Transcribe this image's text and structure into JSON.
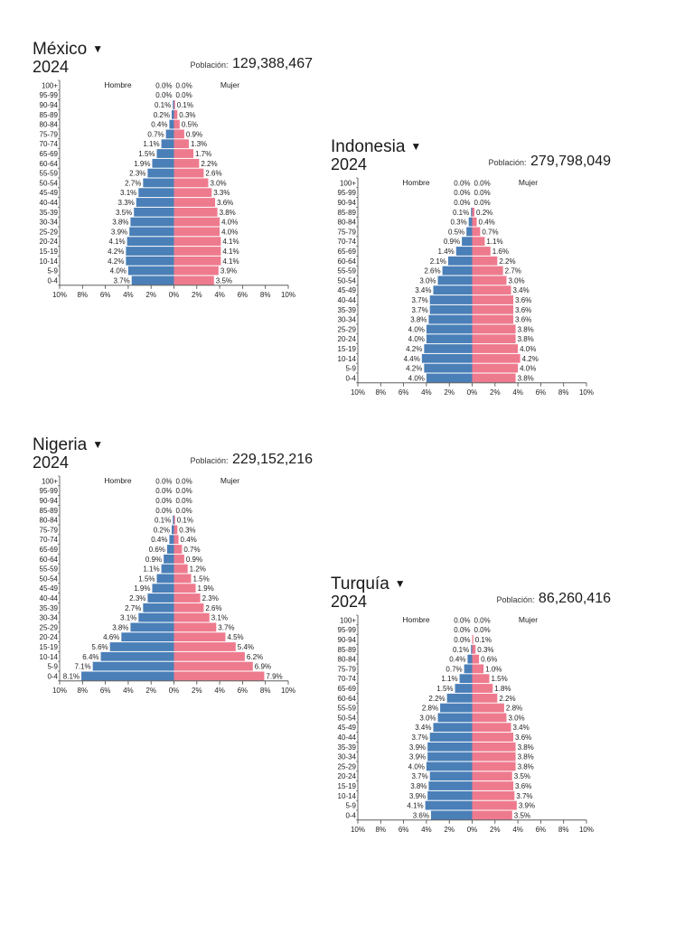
{
  "colors": {
    "male": "#4a7fb8",
    "female": "#ee7a8e",
    "axis": "#444444",
    "text": "#222222"
  },
  "age_groups": [
    "100+",
    "95-99",
    "90-94",
    "85-89",
    "80-84",
    "75-79",
    "70-74",
    "65-69",
    "60-64",
    "55-59",
    "50-54",
    "45-49",
    "40-44",
    "35-39",
    "30-34",
    "25-29",
    "20-24",
    "15-19",
    "10-14",
    "5-9",
    "0-4"
  ],
  "panels": [
    {
      "country": "México",
      "year": "2024",
      "population_label": "Población:",
      "population": "129,388,467",
      "male_label": "Hombre",
      "female_label": "Mujer",
      "chart_data": {
        "type": "bar",
        "orientation": "horizontal-population-pyramid",
        "categories": [
          "100+",
          "95-99",
          "90-94",
          "85-89",
          "80-84",
          "75-79",
          "70-74",
          "65-69",
          "60-64",
          "55-59",
          "50-54",
          "45-49",
          "40-44",
          "35-39",
          "30-34",
          "25-29",
          "20-24",
          "15-19",
          "10-14",
          "5-9",
          "0-4"
        ],
        "series": [
          {
            "name": "Hombre",
            "values": [
              0.0,
              0.0,
              0.1,
              0.2,
              0.4,
              0.7,
              1.1,
              1.5,
              1.9,
              2.3,
              2.7,
              3.1,
              3.3,
              3.5,
              3.8,
              3.9,
              4.1,
              4.2,
              4.2,
              4.0,
              3.7
            ]
          },
          {
            "name": "Mujer",
            "values": [
              0.0,
              0.0,
              0.1,
              0.3,
              0.5,
              0.9,
              1.3,
              1.7,
              2.2,
              2.6,
              3.0,
              3.3,
              3.6,
              3.8,
              4.0,
              4.0,
              4.1,
              4.1,
              4.1,
              3.9,
              3.5
            ]
          }
        ],
        "x_ticks": [
          "10%",
          "8%",
          "6%",
          "4%",
          "2%",
          "0%",
          "2%",
          "4%",
          "6%",
          "8%",
          "10%"
        ],
        "xlim": [
          -10,
          10
        ]
      }
    },
    {
      "country": "Indonesia",
      "year": "2024",
      "population_label": "Población:",
      "population": "279,798,049",
      "male_label": "Hombre",
      "female_label": "Mujer",
      "chart_data": {
        "type": "bar",
        "orientation": "horizontal-population-pyramid",
        "categories": [
          "100+",
          "95-99",
          "90-94",
          "85-89",
          "80-84",
          "75-79",
          "70-74",
          "65-69",
          "60-64",
          "55-59",
          "50-54",
          "45-49",
          "40-44",
          "35-39",
          "30-34",
          "25-29",
          "20-24",
          "15-19",
          "10-14",
          "5-9",
          "0-4"
        ],
        "series": [
          {
            "name": "Hombre",
            "values": [
              0.0,
              0.0,
              0.0,
              0.1,
              0.3,
              0.5,
              0.9,
              1.4,
              2.1,
              2.6,
              3.0,
              3.4,
              3.7,
              3.7,
              3.8,
              4.0,
              4.0,
              4.2,
              4.4,
              4.2,
              4.0
            ]
          },
          {
            "name": "Mujer",
            "values": [
              0.0,
              0.0,
              0.0,
              0.2,
              0.4,
              0.7,
              1.1,
              1.6,
              2.2,
              2.7,
              3.0,
              3.4,
              3.6,
              3.6,
              3.6,
              3.8,
              3.8,
              4.0,
              4.2,
              4.0,
              3.8
            ]
          }
        ],
        "x_ticks": [
          "10%",
          "8%",
          "6%",
          "4%",
          "2%",
          "0%",
          "2%",
          "4%",
          "6%",
          "8%",
          "10%"
        ],
        "xlim": [
          -10,
          10
        ]
      }
    },
    {
      "country": "Nigeria",
      "year": "2024",
      "population_label": "Población:",
      "population": "229,152,216",
      "male_label": "Hombre",
      "female_label": "Mujer",
      "chart_data": {
        "type": "bar",
        "orientation": "horizontal-population-pyramid",
        "categories": [
          "100+",
          "95-99",
          "90-94",
          "85-89",
          "80-84",
          "75-79",
          "70-74",
          "65-69",
          "60-64",
          "55-59",
          "50-54",
          "45-49",
          "40-44",
          "35-39",
          "30-34",
          "25-29",
          "20-24",
          "15-19",
          "10-14",
          "5-9",
          "0-4"
        ],
        "series": [
          {
            "name": "Hombre",
            "values": [
              0.0,
              0.0,
              0.0,
              0.0,
              0.1,
              0.2,
              0.4,
              0.6,
              0.9,
              1.1,
              1.5,
              1.9,
              2.3,
              2.7,
              3.1,
              3.8,
              4.6,
              5.6,
              6.4,
              7.1,
              8.1
            ]
          },
          {
            "name": "Mujer",
            "values": [
              0.0,
              0.0,
              0.0,
              0.0,
              0.1,
              0.3,
              0.4,
              0.7,
              0.9,
              1.2,
              1.5,
              1.9,
              2.3,
              2.6,
              3.1,
              3.7,
              4.5,
              5.4,
              6.2,
              6.9,
              7.9
            ]
          }
        ],
        "x_ticks": [
          "10%",
          "8%",
          "6%",
          "4%",
          "2%",
          "0%",
          "2%",
          "4%",
          "6%",
          "8%",
          "10%"
        ],
        "xlim": [
          -10,
          10
        ]
      }
    },
    {
      "country": "Turquía",
      "year": "2024",
      "population_label": "Población:",
      "population": "86,260,416",
      "male_label": "Hombre",
      "female_label": "Mujer",
      "chart_data": {
        "type": "bar",
        "orientation": "horizontal-population-pyramid",
        "categories": [
          "100+",
          "95-99",
          "90-94",
          "85-89",
          "80-84",
          "75-79",
          "70-74",
          "65-69",
          "60-64",
          "55-59",
          "50-54",
          "45-49",
          "40-44",
          "35-39",
          "30-34",
          "25-29",
          "20-24",
          "15-19",
          "10-14",
          "5-9",
          "0-4"
        ],
        "series": [
          {
            "name": "Hombre",
            "values": [
              0.0,
              0.0,
              0.0,
              0.1,
              0.4,
              0.7,
              1.1,
              1.5,
              2.2,
              2.8,
              3.0,
              3.4,
              3.7,
              3.9,
              3.9,
              4.0,
              3.7,
              3.8,
              3.9,
              4.1,
              3.6
            ]
          },
          {
            "name": "Mujer",
            "values": [
              0.0,
              0.0,
              0.1,
              0.3,
              0.6,
              1.0,
              1.5,
              1.8,
              2.2,
              2.8,
              3.0,
              3.4,
              3.6,
              3.8,
              3.8,
              3.8,
              3.5,
              3.6,
              3.7,
              3.9,
              3.5
            ]
          }
        ],
        "x_ticks": [
          "10%",
          "8%",
          "6%",
          "4%",
          "2%",
          "0%",
          "2%",
          "4%",
          "6%",
          "8%",
          "10%"
        ],
        "xlim": [
          -10,
          10
        ]
      }
    }
  ]
}
